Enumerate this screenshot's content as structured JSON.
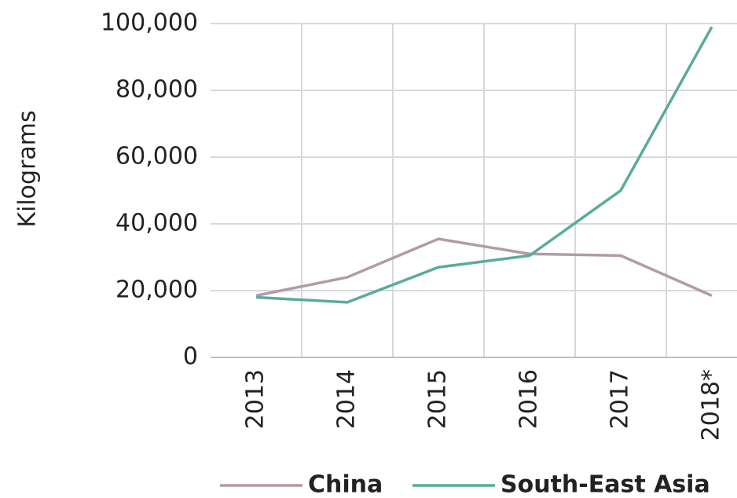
{
  "chart_data": {
    "type": "line",
    "y_label": "Kilograms",
    "categories": [
      "2013",
      "2014",
      "2015",
      "2016",
      "2017",
      "2018*"
    ],
    "series": [
      {
        "name": "China",
        "color": "#b39aa7",
        "values": [
          18500,
          24000,
          35500,
          31000,
          30500,
          18500
        ]
      },
      {
        "name": "South-East Asia",
        "color": "#5aab9b",
        "values": [
          18000,
          16500,
          27000,
          30500,
          50000,
          99000
        ]
      }
    ],
    "ylim": [
      0,
      100000
    ],
    "yticks": [
      0,
      {
        "value": 20000,
        "label": "20,000"
      },
      {
        "value": 40000,
        "label": "40,000"
      },
      {
        "value": 60000,
        "label": "60,000"
      },
      {
        "value": 80000,
        "label": "80,000"
      },
      {
        "value": 100000,
        "label": "100,000"
      }
    ],
    "grid": true,
    "legend": "bottom"
  }
}
